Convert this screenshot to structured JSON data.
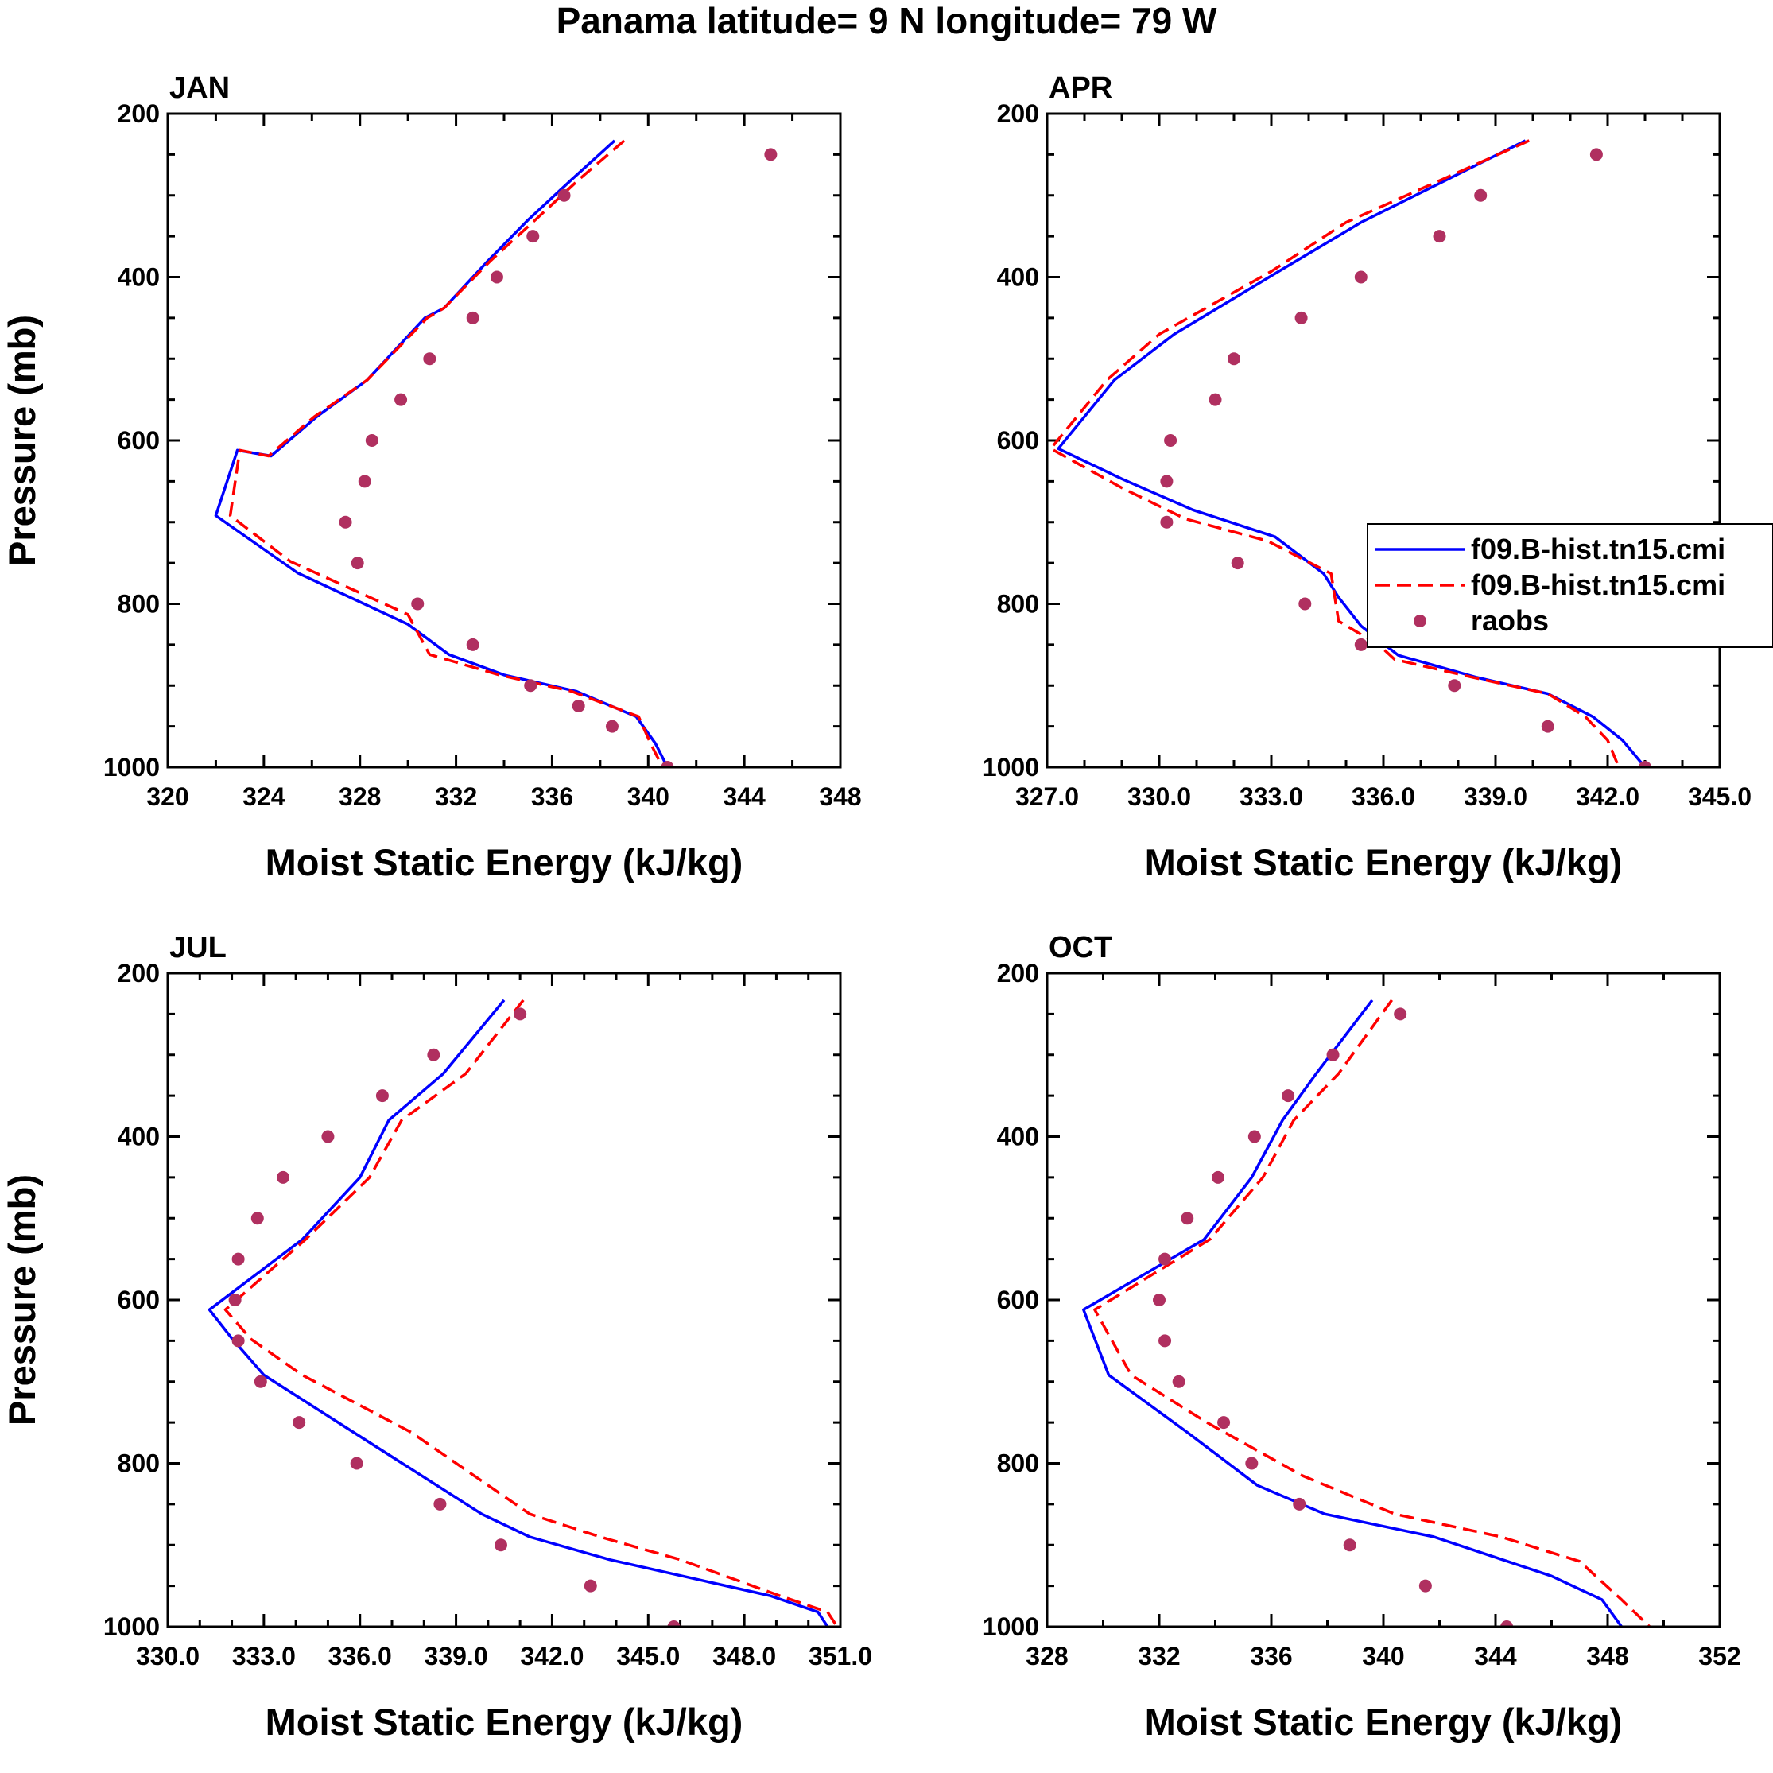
{
  "figure_title": "Panama  latitude= 9 N longitude= 79 W",
  "legend": {
    "entries": [
      {
        "label": "f09.B-hist.tn15.cmi",
        "style": "solid",
        "color": "#0000ff"
      },
      {
        "label": "f09.B-hist.tn15.cmi",
        "style": "dashed",
        "color": "#ff0000"
      },
      {
        "label": "raobs",
        "style": "marker",
        "color": "#b03060"
      }
    ]
  },
  "colors": {
    "model_solid": "#0000ff",
    "model_dashed": "#ff0000",
    "raobs": "#b03060"
  },
  "chart_data": [
    {
      "type": "line",
      "title": "JAN",
      "xlabel": "Moist Static Energy (kJ/kg)",
      "ylabel": "Pressure (mb)",
      "xlim": [
        320,
        348
      ],
      "ylim": [
        1000,
        200
      ],
      "xticks": [
        320,
        324,
        328,
        332,
        336,
        340,
        344,
        348
      ],
      "xtick_labels": [
        "320",
        "324",
        "328",
        "332",
        "336",
        "340",
        "344",
        "348"
      ],
      "xminor_step": 2,
      "yticks": [
        200,
        400,
        600,
        800,
        1000
      ],
      "ytick_labels": [
        "200",
        "400",
        "600",
        "800",
        "1000"
      ],
      "yminor_step": 50,
      "series": [
        {
          "name": "f09.B-hist.tn15.cmi",
          "style": "solid",
          "x": [
            338.6,
            336.8,
            335.0,
            333.3,
            331.5,
            330.7,
            328.3,
            326.2,
            324.3,
            322.9,
            322.0,
            325.4,
            330.0,
            331.7,
            334.0,
            337.0,
            339.5,
            340.3,
            340.8
          ],
          "p": [
            233,
            281,
            330,
            381,
            438,
            450,
            526,
            571,
            619,
            612,
            692,
            762,
            825,
            862,
            887,
            907,
            938,
            971,
            1000
          ]
        },
        {
          "name": "f09.B-hist.tn15.cmi",
          "style": "dashed",
          "x": [
            339.0,
            337.1,
            335.3,
            333.4,
            331.5,
            330.8,
            328.3,
            326.1,
            324.2,
            323.0,
            322.6,
            325.1,
            330.0,
            330.9,
            333.8,
            336.8,
            339.6,
            340.1,
            340.6
          ],
          "p": [
            233,
            281,
            330,
            381,
            438,
            450,
            526,
            571,
            619,
            612,
            692,
            748,
            813,
            862,
            887,
            907,
            938,
            971,
            1000
          ]
        },
        {
          "name": "raobs",
          "style": "marker",
          "x": [
            345.1,
            336.5,
            335.2,
            333.7,
            332.7,
            330.9,
            329.7,
            328.5,
            328.2,
            327.4,
            327.9,
            330.4,
            332.7,
            335.1,
            337.1,
            338.5,
            340.8
          ],
          "p": [
            250,
            300,
            350,
            400,
            450,
            500,
            550,
            600,
            650,
            700,
            750,
            800,
            850,
            900,
            925,
            950,
            1000
          ]
        }
      ]
    },
    {
      "type": "line",
      "title": "APR",
      "xlabel": "Moist Static Energy (kJ/kg)",
      "ylabel": "Pressure (mb)",
      "xlim": [
        327.0,
        345.0
      ],
      "ylim": [
        1000,
        200
      ],
      "xticks": [
        327,
        330,
        333,
        336,
        339,
        342,
        345
      ],
      "xtick_labels": [
        "327.0",
        "330.0",
        "333.0",
        "336.0",
        "339.0",
        "342.0",
        "345.0"
      ],
      "xminor_step": 1,
      "yticks": [
        200,
        400,
        600,
        800,
        1000
      ],
      "ytick_labels": [
        "200",
        "400",
        "600",
        "800",
        "1000"
      ],
      "yminor_step": 50,
      "series": [
        {
          "name": "f09.B-hist.tn15.cmi",
          "style": "solid",
          "x": [
            339.8,
            335.4,
            333.2,
            330.4,
            328.8,
            327.3,
            329.0,
            330.9,
            333.1,
            334.4,
            334.8,
            335.4,
            336.4,
            338.5,
            340.4,
            341.6,
            342.4,
            343.0
          ],
          "p": [
            233,
            333,
            393,
            470,
            526,
            610,
            647,
            685,
            718,
            763,
            792,
            827,
            863,
            890,
            910,
            938,
            967,
            1000
          ]
        },
        {
          "name": "f09.B-hist.tn15.cmi",
          "style": "dashed",
          "x": [
            339.9,
            335.0,
            333.0,
            330.0,
            328.6,
            327.1,
            329.0,
            330.7,
            332.9,
            334.6,
            334.8,
            335.9,
            336.3,
            338.4,
            340.4,
            341.4,
            342.0,
            342.3
          ],
          "p": [
            233,
            333,
            393,
            470,
            526,
            610,
            658,
            696,
            723,
            763,
            821,
            851,
            868,
            890,
            910,
            938,
            967,
            1000
          ]
        },
        {
          "name": "raobs",
          "style": "marker",
          "x": [
            341.7,
            338.6,
            337.5,
            335.4,
            333.8,
            332.0,
            331.5,
            330.3,
            330.2,
            330.2,
            332.1,
            333.9,
            335.4,
            337.9,
            340.4,
            343.0
          ],
          "p": [
            250,
            300,
            350,
            400,
            450,
            500,
            550,
            600,
            650,
            700,
            750,
            800,
            850,
            900,
            950,
            1000
          ]
        }
      ]
    },
    {
      "type": "line",
      "title": "JUL",
      "xlabel": "Moist Static Energy (kJ/kg)",
      "ylabel": "Pressure (mb)",
      "xlim": [
        330.0,
        351.0
      ],
      "ylim": [
        1000,
        200
      ],
      "xticks": [
        330,
        333,
        336,
        339,
        342,
        345,
        348,
        351
      ],
      "xtick_labels": [
        "330.0",
        "333.0",
        "336.0",
        "339.0",
        "342.0",
        "345.0",
        "348.0",
        "351.0"
      ],
      "xminor_step": 1,
      "yticks": [
        200,
        400,
        600,
        800,
        1000
      ],
      "ytick_labels": [
        "200",
        "400",
        "600",
        "800",
        "1000"
      ],
      "yminor_step": 50,
      "series": [
        {
          "name": "f09.B-hist.tn15.cmi",
          "style": "solid",
          "x": [
            340.5,
            338.6,
            336.9,
            336.0,
            334.2,
            331.3,
            332.0,
            333.0,
            335.8,
            339.8,
            341.3,
            343.8,
            348.8,
            350.3,
            350.6
          ],
          "p": [
            233,
            323,
            380,
            450,
            526,
            612,
            647,
            692,
            762,
            862,
            890,
            918,
            962,
            982,
            1000
          ]
        },
        {
          "name": "f09.B-hist.tn15.cmi",
          "style": "dashed",
          "x": [
            341.1,
            339.3,
            337.3,
            336.3,
            334.3,
            331.8,
            332.6,
            334.2,
            337.6,
            341.3,
            343.5,
            346.0,
            349.1,
            350.6,
            350.9
          ],
          "p": [
            233,
            323,
            380,
            450,
            526,
            612,
            648,
            692,
            762,
            862,
            890,
            918,
            962,
            982,
            1000
          ]
        },
        {
          "name": "raobs",
          "style": "marker",
          "x": [
            341.0,
            338.3,
            336.7,
            335.0,
            333.6,
            332.8,
            332.2,
            332.1,
            332.2,
            332.9,
            334.1,
            335.9,
            338.5,
            340.4,
            343.2,
            345.8
          ],
          "p": [
            250,
            300,
            350,
            400,
            450,
            500,
            550,
            600,
            650,
            700,
            750,
            800,
            850,
            900,
            950,
            1000
          ]
        }
      ]
    },
    {
      "type": "line",
      "title": "OCT",
      "xlabel": "Moist Static Energy (kJ/kg)",
      "ylabel": "Pressure (mb)",
      "xlim": [
        328,
        352
      ],
      "ylim": [
        1000,
        200
      ],
      "xticks": [
        328,
        332,
        336,
        340,
        344,
        348,
        352
      ],
      "xtick_labels": [
        "328",
        "332",
        "336",
        "340",
        "344",
        "348",
        "352"
      ],
      "xminor_step": 2,
      "yticks": [
        200,
        400,
        600,
        800,
        1000
      ],
      "ytick_labels": [
        "200",
        "400",
        "600",
        "800",
        "1000"
      ],
      "yminor_step": 50,
      "series": [
        {
          "name": "f09.B-hist.tn15.cmi",
          "style": "solid",
          "x": [
            339.6,
            337.6,
            336.4,
            335.3,
            333.6,
            329.3,
            330.2,
            333.0,
            335.5,
            337.9,
            341.8,
            346.0,
            347.8,
            348.5
          ],
          "p": [
            233,
            323,
            380,
            450,
            526,
            612,
            692,
            762,
            827,
            862,
            890,
            938,
            967,
            1000
          ]
        },
        {
          "name": "f09.B-hist.tn15.cmi",
          "style": "dashed",
          "x": [
            340.3,
            338.4,
            336.8,
            335.7,
            333.8,
            329.7,
            331.0,
            333.7,
            337.1,
            340.4,
            344.2,
            347.0,
            348.5,
            349.5
          ],
          "p": [
            233,
            323,
            380,
            450,
            526,
            612,
            692,
            750,
            815,
            862,
            890,
            920,
            967,
            1000
          ]
        },
        {
          "name": "raobs",
          "style": "marker",
          "x": [
            340.6,
            338.2,
            336.6,
            335.4,
            334.1,
            333.0,
            332.2,
            332.0,
            332.2,
            332.7,
            334.3,
            335.3,
            337.0,
            338.8,
            341.5,
            344.4
          ],
          "p": [
            250,
            300,
            350,
            400,
            450,
            500,
            550,
            600,
            650,
            700,
            750,
            800,
            850,
            900,
            950,
            1000
          ]
        }
      ]
    }
  ]
}
